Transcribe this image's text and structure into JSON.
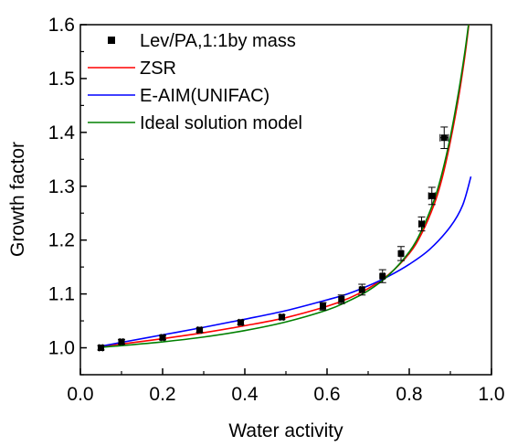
{
  "chart_data": {
    "type": "line",
    "title": "",
    "xlabel": "Water activity",
    "ylabel": "Growth factor",
    "xlim": [
      0.0,
      1.0
    ],
    "ylim": [
      0.95,
      1.6
    ],
    "x_ticks": [
      "0.0",
      "0.2",
      "0.4",
      "0.6",
      "0.8",
      "1.0"
    ],
    "x_tick_values": [
      0.0,
      0.2,
      0.4,
      0.6,
      0.8,
      1.0
    ],
    "y_ticks": [
      "1.0",
      "1.1",
      "1.2",
      "1.3",
      "1.4",
      "1.5",
      "1.6"
    ],
    "y_tick_values": [
      1.0,
      1.1,
      1.2,
      1.3,
      1.4,
      1.5,
      1.6
    ],
    "grid": false,
    "legend_position": "top-left",
    "measured": {
      "name": "Lev/PA,1:1by mass",
      "color": "#000000",
      "marker": "square",
      "x": [
        0.05,
        0.1,
        0.2,
        0.29,
        0.39,
        0.49,
        0.59,
        0.635,
        0.685,
        0.735,
        0.78,
        0.83,
        0.855,
        0.885
      ],
      "y": [
        1.0,
        1.011,
        1.019,
        1.033,
        1.047,
        1.057,
        1.077,
        1.09,
        1.108,
        1.133,
        1.175,
        1.23,
        1.282,
        1.39
      ],
      "y_err": [
        0.004,
        0.004,
        0.004,
        0.004,
        0.004,
        0.004,
        0.007,
        0.008,
        0.01,
        0.012,
        0.013,
        0.013,
        0.016,
        0.02
      ],
      "x_err": [
        0.004,
        0.004,
        0.004,
        0.004,
        0.004,
        0.004,
        0.004,
        0.004,
        0.004,
        0.004,
        0.004,
        0.006,
        0.008,
        0.01
      ]
    },
    "series": [
      {
        "name": "ZSR",
        "color": "#ff0000",
        "x": [
          0.05,
          0.1,
          0.2,
          0.3,
          0.4,
          0.5,
          0.6,
          0.65,
          0.7,
          0.75,
          0.8,
          0.83,
          0.86,
          0.88,
          0.9,
          0.92,
          0.935,
          0.945
        ],
        "y": [
          1.003,
          1.007,
          1.017,
          1.028,
          1.041,
          1.056,
          1.077,
          1.091,
          1.11,
          1.136,
          1.175,
          1.212,
          1.265,
          1.315,
          1.383,
          1.465,
          1.54,
          1.6
        ]
      },
      {
        "name": "E-AIM(UNIFAC)",
        "color": "#0000ff",
        "x": [
          0.05,
          0.1,
          0.2,
          0.3,
          0.4,
          0.5,
          0.6,
          0.65,
          0.7,
          0.75,
          0.8,
          0.85,
          0.9,
          0.93,
          0.95
        ],
        "y": [
          1.003,
          1.01,
          1.024,
          1.038,
          1.053,
          1.069,
          1.089,
          1.1,
          1.115,
          1.133,
          1.155,
          1.183,
          1.225,
          1.265,
          1.318
        ]
      },
      {
        "name": "Ideal solution model",
        "color": "#008000",
        "x": [
          0.05,
          0.1,
          0.2,
          0.3,
          0.4,
          0.5,
          0.6,
          0.65,
          0.7,
          0.75,
          0.8,
          0.83,
          0.86,
          0.88,
          0.9,
          0.92,
          0.935,
          0.945
        ],
        "y": [
          1.001,
          1.004,
          1.011,
          1.02,
          1.032,
          1.048,
          1.07,
          1.086,
          1.106,
          1.135,
          1.178,
          1.218,
          1.273,
          1.325,
          1.392,
          1.475,
          1.548,
          1.605
        ]
      }
    ]
  }
}
